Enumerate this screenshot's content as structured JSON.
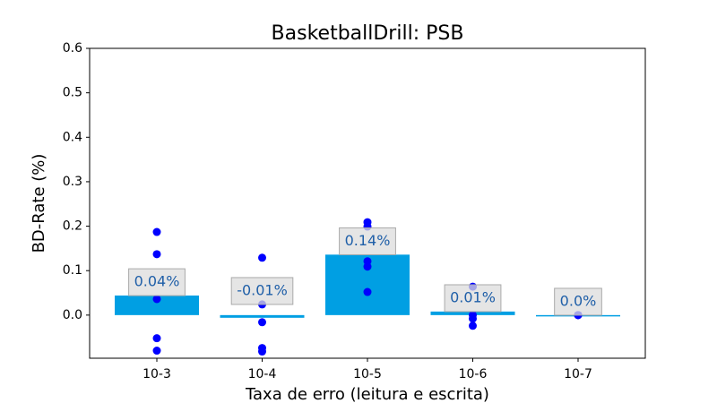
{
  "chart_data": {
    "type": "bar",
    "title": "BasketballDrill: PSB",
    "x_label": "Taxa de erro (leitura e escrita)",
    "y_label": "BD-Rate (%)",
    "categories": [
      "10-3",
      "10-4",
      "10-5",
      "10-6",
      "10-7"
    ],
    "values": [
      0.044,
      -0.006,
      0.136,
      0.008,
      0.0
    ],
    "value_labels": [
      "0.04%",
      "-0.01%",
      "0.14%",
      "0.01%",
      "0.0%"
    ],
    "color": "#009fe3",
    "points": [
      [
        0.187,
        0.137,
        0.036,
        -0.052,
        -0.08
      ],
      [
        0.129,
        0.024,
        -0.016,
        -0.074,
        -0.082
      ],
      [
        0.209,
        0.199,
        0.121,
        0.109,
        0.052
      ],
      [
        0.064,
        0.0,
        -0.008,
        -0.024
      ],
      [
        0.0,
        0.0,
        0.0
      ]
    ],
    "point_color": "#0000ff",
    "ylim": [
      -0.097,
      0.6
    ],
    "yticks": [
      {
        "value": 0,
        "label": "0.0"
      },
      {
        "value": 0.1,
        "label": "0.1"
      },
      {
        "value": 0.2,
        "label": "0.2"
      },
      {
        "value": 0.3,
        "label": "0.3"
      },
      {
        "value": 0.4,
        "label": "0.4"
      },
      {
        "value": 0.5,
        "label": "0.5"
      },
      {
        "value": 0.6,
        "label": "0.6"
      }
    ]
  }
}
